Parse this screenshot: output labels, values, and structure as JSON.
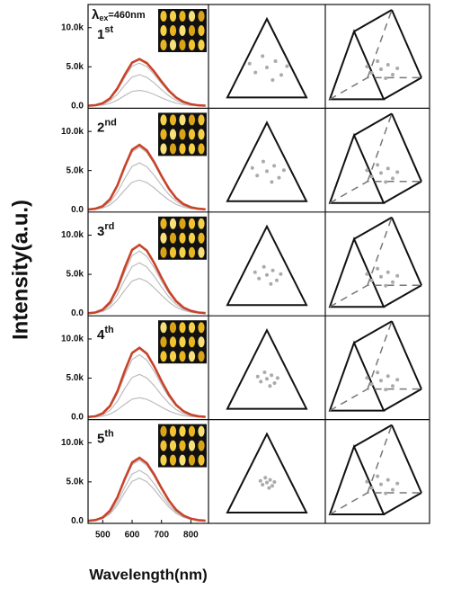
{
  "ylabel": "Intensity(a.u.)",
  "xlabel": "Wavelength(nm)",
  "chart_data": [
    {
      "type": "line",
      "note": [
        "λ",
        "ex",
        "=460nm"
      ],
      "annotation": "1",
      "annotation_sup": "st",
      "x": [
        450,
        475,
        500,
        525,
        550,
        575,
        600,
        625,
        650,
        675,
        700,
        725,
        750,
        775,
        800,
        825,
        850
      ],
      "xlim": [
        450,
        860
      ],
      "ylim": [
        -300,
        12500
      ],
      "yticks": [
        {
          "value": 0,
          "label": "0.0"
        },
        {
          "value": 5000,
          "label": "5.0k"
        },
        {
          "value": 10000,
          "label": "10.0k"
        }
      ],
      "series": [
        {
          "color": "#bdbdbd",
          "values": [
            20,
            80,
            310,
            900,
            2060,
            3670,
            5080,
            5480,
            5020,
            4040,
            2860,
            1790,
            980,
            470,
            200,
            80,
            30
          ]
        },
        {
          "color": "#bdbdbd",
          "values": [
            10,
            60,
            220,
            660,
            1500,
            2670,
            3690,
            3990,
            3650,
            2940,
            2080,
            1300,
            710,
            340,
            150,
            60,
            20
          ]
        },
        {
          "color": "#bdbdbd",
          "values": [
            10,
            30,
            110,
            330,
            750,
            1330,
            1850,
            1990,
            1820,
            1470,
            1040,
            650,
            360,
            170,
            70,
            30,
            10
          ]
        },
        {
          "color": "#c8432a",
          "values": [
            20,
            90,
            340,
            980,
            2250,
            4000,
            5540,
            5980,
            5470,
            4400,
            3120,
            1950,
            1070,
            520,
            220,
            80,
            30
          ]
        }
      ]
    },
    {
      "type": "line",
      "annotation": "2",
      "annotation_sup": "nd",
      "x": [
        450,
        475,
        500,
        525,
        550,
        575,
        600,
        625,
        650,
        675,
        700,
        725,
        750,
        775,
        800,
        825,
        850
      ],
      "xlim": [
        450,
        860
      ],
      "ylim": [
        -300,
        12500
      ],
      "yticks": [
        {
          "value": 0,
          "label": "0.0"
        },
        {
          "value": 5000,
          "label": "5.0k"
        },
        {
          "value": 10000,
          "label": "10.0k"
        }
      ],
      "series": [
        {
          "color": "#bdbdbd",
          "values": [
            20,
            120,
            450,
            1310,
            3000,
            5340,
            7380,
            7980,
            7300,
            5870,
            4160,
            2600,
            1420,
            690,
            300,
            110,
            40
          ]
        },
        {
          "color": "#bdbdbd",
          "values": [
            20,
            90,
            340,
            980,
            2250,
            4000,
            5540,
            5980,
            5470,
            4400,
            3120,
            1950,
            1070,
            520,
            220,
            80,
            30
          ]
        },
        {
          "color": "#bdbdbd",
          "values": [
            10,
            60,
            210,
            620,
            1430,
            2530,
            3510,
            3790,
            3470,
            2790,
            1980,
            1240,
            680,
            330,
            140,
            50,
            20
          ]
        },
        {
          "color": "#c8432a",
          "values": [
            20,
            120,
            460,
            1360,
            3110,
            5540,
            7660,
            8280,
            7570,
            6090,
            4320,
            2700,
            1480,
            710,
            310,
            120,
            40
          ]
        }
      ]
    },
    {
      "type": "line",
      "annotation": "3",
      "annotation_sup": "rd",
      "x": [
        450,
        475,
        500,
        525,
        550,
        575,
        600,
        625,
        650,
        675,
        700,
        725,
        750,
        775,
        800,
        825,
        850
      ],
      "xlim": [
        450,
        860
      ],
      "ylim": [
        -300,
        12500
      ],
      "yticks": [
        {
          "value": 0,
          "label": "0.0"
        },
        {
          "value": 5000,
          "label": "5.0k"
        },
        {
          "value": 10000,
          "label": "10.0k"
        }
      ],
      "series": [
        {
          "color": "#bdbdbd",
          "values": [
            20,
            120,
            450,
            1310,
            3000,
            5340,
            7380,
            7980,
            7300,
            5870,
            4160,
            2600,
            1420,
            690,
            300,
            110,
            40
          ]
        },
        {
          "color": "#bdbdbd",
          "values": [
            20,
            100,
            360,
            1070,
            2440,
            4340,
            6000,
            6480,
            5930,
            4770,
            3380,
            2110,
            1160,
            560,
            240,
            90,
            30
          ]
        },
        {
          "color": "#bdbdbd",
          "values": [
            10,
            70,
            250,
            740,
            1690,
            3000,
            4150,
            4490,
            4100,
            3300,
            2340,
            1460,
            800,
            390,
            170,
            60,
            20
          ]
        },
        {
          "color": "#c8432a",
          "values": [
            30,
            130,
            490,
            1440,
            3300,
            5870,
            8120,
            8770,
            8030,
            6460,
            4580,
            2860,
            1570,
            760,
            330,
            120,
            40
          ]
        }
      ]
    },
    {
      "type": "line",
      "annotation": "4",
      "annotation_sup": "th",
      "x": [
        450,
        475,
        500,
        525,
        550,
        575,
        600,
        625,
        650,
        675,
        700,
        725,
        750,
        775,
        800,
        825,
        850
      ],
      "xlim": [
        450,
        860
      ],
      "ylim": [
        -300,
        12500
      ],
      "yticks": [
        {
          "value": 0,
          "label": "0.0"
        },
        {
          "value": 5000,
          "label": "5.0k"
        },
        {
          "value": 10000,
          "label": "10.0k"
        }
      ],
      "series": [
        {
          "color": "#bdbdbd",
          "values": [
            20,
            120,
            450,
            1310,
            3000,
            5340,
            7380,
            7980,
            7300,
            5870,
            4160,
            2600,
            1420,
            690,
            300,
            110,
            40
          ]
        },
        {
          "color": "#bdbdbd",
          "values": [
            20,
            80,
            310,
            900,
            2060,
            3670,
            5080,
            5480,
            5020,
            4040,
            2860,
            1790,
            980,
            470,
            200,
            80,
            30
          ]
        },
        {
          "color": "#bdbdbd",
          "values": [
            10,
            40,
            140,
            410,
            940,
            1670,
            2310,
            2490,
            2280,
            1840,
            1300,
            810,
            450,
            220,
            90,
            40,
            10
          ]
        },
        {
          "color": "#c8432a",
          "values": [
            30,
            130,
            500,
            1460,
            3340,
            5940,
            8210,
            8870,
            8120,
            6530,
            4630,
            2890,
            1580,
            770,
            330,
            120,
            40
          ]
        }
      ]
    },
    {
      "type": "line",
      "annotation": "5",
      "annotation_sup": "th",
      "x": [
        450,
        475,
        500,
        525,
        550,
        575,
        600,
        625,
        650,
        675,
        700,
        725,
        750,
        775,
        800,
        825,
        850
      ],
      "xlim": [
        450,
        860
      ],
      "ylim": [
        -300,
        12500
      ],
      "xticks": [
        500,
        600,
        700,
        800
      ],
      "yticks": [
        {
          "value": 0,
          "label": "0.0"
        },
        {
          "value": 5000,
          "label": "5.0k"
        },
        {
          "value": 10000,
          "label": "10.0k"
        }
      ],
      "series": [
        {
          "color": "#bdbdbd",
          "values": [
            20,
            120,
            440,
            1280,
            2930,
            5200,
            7200,
            7780,
            7110,
            5730,
            4060,
            2540,
            1390,
            670,
            290,
            110,
            40
          ]
        },
        {
          "color": "#bdbdbd",
          "values": [
            20,
            100,
            360,
            1070,
            2440,
            4340,
            6000,
            6480,
            5930,
            4770,
            3380,
            2110,
            1160,
            560,
            240,
            90,
            30
          ]
        },
        {
          "color": "#bdbdbd",
          "values": [
            20,
            80,
            310,
            900,
            2060,
            3670,
            5080,
            5480,
            5020,
            4040,
            2860,
            1790,
            980,
            470,
            200,
            80,
            30
          ]
        },
        {
          "color": "#c8432a",
          "values": [
            20,
            120,
            450,
            1330,
            3040,
            5400,
            7480,
            8080,
            7390,
            5950,
            4210,
            2630,
            1440,
            700,
            300,
            110,
            40
          ]
        }
      ]
    }
  ]
}
